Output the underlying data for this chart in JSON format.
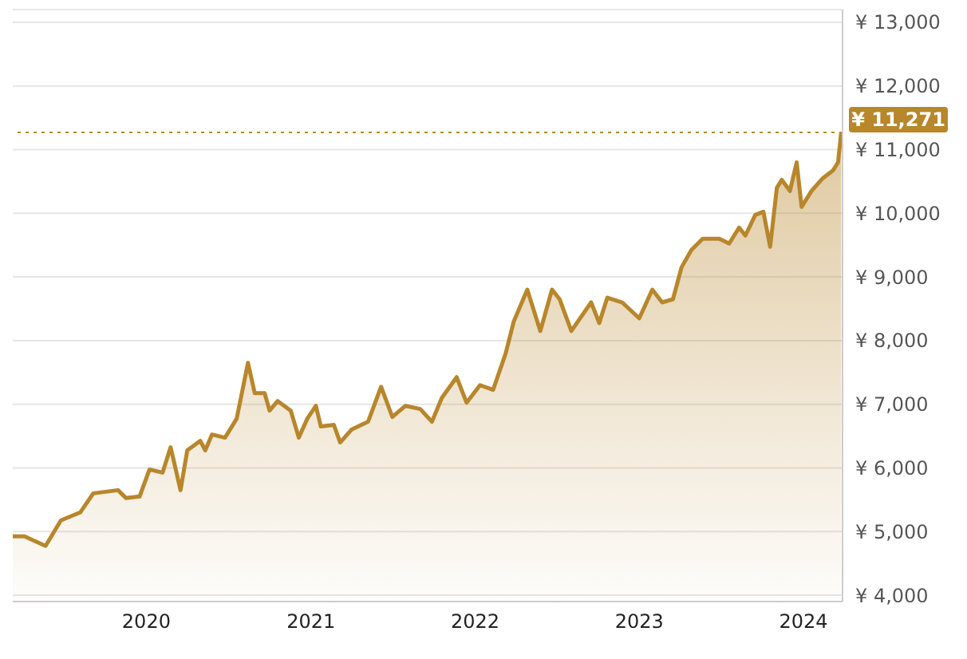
{
  "chart_data": {
    "type": "area",
    "x": [
      "2019-03-10",
      "2019-04-05",
      "2019-05-22",
      "2019-06-25",
      "2019-08-07",
      "2019-09-05",
      "2019-10-30",
      "2019-11-17",
      "2019-12-17",
      "2020-01-08",
      "2020-02-06",
      "2020-02-24",
      "2020-03-17",
      "2020-04-01",
      "2020-04-30",
      "2020-05-11",
      "2020-05-26",
      "2020-06-24",
      "2020-07-20",
      "2020-08-14",
      "2020-08-29",
      "2020-09-20",
      "2020-10-01",
      "2020-10-19",
      "2020-11-17",
      "2020-12-05",
      "2020-12-24",
      "2021-01-12",
      "2021-01-23",
      "2021-02-21",
      "2021-03-07",
      "2021-04-01",
      "2021-05-08",
      "2021-06-06",
      "2021-07-01",
      "2021-07-30",
      "2021-09-01",
      "2021-09-27",
      "2021-10-19",
      "2021-11-21",
      "2021-12-13",
      "2022-01-12",
      "2022-02-10",
      "2022-03-10",
      "2022-03-28",
      "2022-04-27",
      "2022-05-26",
      "2022-06-21",
      "2022-07-08",
      "2022-08-03",
      "2022-09-16",
      "2022-10-04",
      "2022-10-22",
      "2022-11-24",
      "2023-01-01",
      "2023-01-30",
      "2023-02-21",
      "2023-03-17",
      "2023-04-05",
      "2023-04-27",
      "2023-05-22",
      "2023-06-28",
      "2023-07-20",
      "2023-08-11",
      "2023-08-25",
      "2023-09-16",
      "2023-10-04",
      "2023-10-19",
      "2023-11-03",
      "2023-11-14",
      "2023-12-02",
      "2023-12-17",
      "2023-12-28",
      "2024-01-19",
      "2024-02-13",
      "2024-03-07",
      "2024-03-18",
      "2024-03-25"
    ],
    "series": [
      {
        "color": "#b8862b",
        "values": [
          4925,
          4925,
          4775,
          5175,
          5300,
          5600,
          5650,
          5525,
          5550,
          5975,
          5925,
          6325,
          5650,
          6275,
          6425,
          6275,
          6525,
          6475,
          6775,
          7650,
          7175,
          7175,
          6900,
          7050,
          6900,
          6475,
          6775,
          6975,
          6650,
          6675,
          6400,
          6600,
          6725,
          7275,
          6800,
          6975,
          6925,
          6725,
          7100,
          7425,
          7025,
          7300,
          7225,
          7800,
          8300,
          8800,
          8150,
          8800,
          8650,
          8150,
          8600,
          8275,
          8675,
          8600,
          8350,
          8800,
          8600,
          8650,
          9150,
          9425,
          9600,
          9600,
          9525,
          9775,
          9650,
          9975,
          10025,
          9475,
          10400,
          10525,
          10350,
          10800,
          10100,
          10350,
          10550,
          10675,
          10800,
          11271
        ]
      }
    ],
    "xlim": [
      "2019-03-10",
      "2024-03-28"
    ],
    "xticks": [
      {
        "value": "2020-01-01",
        "label": "2020"
      },
      {
        "value": "2021-01-01",
        "label": "2021"
      },
      {
        "value": "2022-01-01",
        "label": "2022"
      },
      {
        "value": "2023-01-01",
        "label": "2023"
      },
      {
        "value": "2024-01-01",
        "label": "2024"
      }
    ],
    "ylim": [
      3900,
      13200
    ],
    "yticks": [
      {
        "value": 4000,
        "label": "¥ 4,000"
      },
      {
        "value": 5000,
        "label": "¥ 5,000"
      },
      {
        "value": 6000,
        "label": "¥ 6,000"
      },
      {
        "value": 7000,
        "label": "¥ 7,000"
      },
      {
        "value": 8000,
        "label": "¥ 8,000"
      },
      {
        "value": 9000,
        "label": "¥ 9,000"
      },
      {
        "value": 10000,
        "label": "¥ 10,000"
      },
      {
        "value": 11000,
        "label": "¥ 11,000"
      },
      {
        "value": 12000,
        "label": "¥ 12,000"
      },
      {
        "value": 13000,
        "label": "¥ 13,000"
      }
    ],
    "ref_lines": [
      {
        "axis": "y",
        "value": 11271,
        "label": "¥ 11,271",
        "color": "#b8862b",
        "line_style": "dotted"
      }
    ],
    "grid": "y",
    "legend": false
  }
}
